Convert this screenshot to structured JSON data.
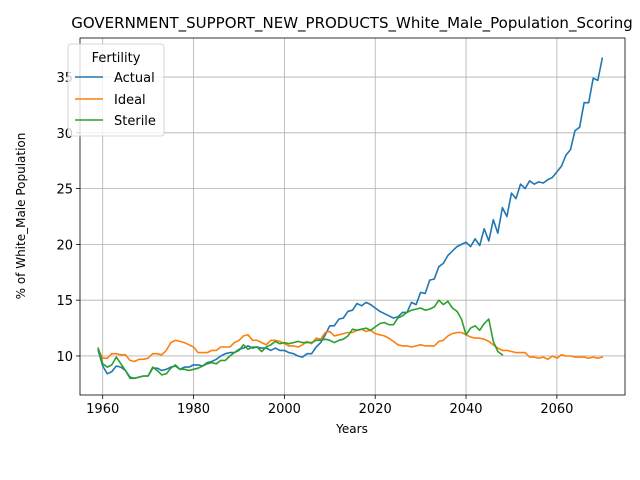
{
  "chart_data": {
    "type": "line",
    "title": "GOVERNMENT_SUPPORT_NEW_PRODUCTS_White_Male_Population_Scoring",
    "xlabel": "Years",
    "ylabel": "% of White_Male Population",
    "xlim": [
      1955,
      2075
    ],
    "ylim": [
      6.5,
      38.5
    ],
    "xticks": [
      1960,
      1980,
      2000,
      2020,
      2040,
      2060
    ],
    "yticks": [
      10,
      15,
      20,
      25,
      30,
      35
    ],
    "grid": true,
    "legend": {
      "title": "Fertility",
      "position": "upper-left"
    },
    "series": [
      {
        "name": "Actual",
        "color": "#1f77b4",
        "x": [
          1959,
          1960,
          1961,
          1962,
          1963,
          1964,
          1965,
          1966,
          1967,
          1968,
          1969,
          1970,
          1971,
          1972,
          1973,
          1974,
          1975,
          1976,
          1977,
          1978,
          1979,
          1980,
          1981,
          1982,
          1983,
          1984,
          1985,
          1986,
          1987,
          1988,
          1989,
          1990,
          1991,
          1992,
          1993,
          1994,
          1995,
          1996,
          1997,
          1998,
          1999,
          2000,
          2001,
          2002,
          2003,
          2004,
          2005,
          2006,
          2007,
          2008,
          2009,
          2010,
          2011,
          2012,
          2013,
          2014,
          2015,
          2016,
          2017,
          2018,
          2019,
          2020,
          2021,
          2022,
          2023,
          2024,
          2025,
          2026,
          2027,
          2028,
          2029,
          2030,
          2031,
          2032,
          2033,
          2034,
          2035,
          2036,
          2037,
          2038,
          2039,
          2040,
          2041,
          2042,
          2043,
          2044,
          2045,
          2046,
          2047,
          2048,
          2049,
          2050,
          2051,
          2052,
          2053,
          2054,
          2055,
          2056,
          2057,
          2058,
          2059,
          2060,
          2061,
          2062,
          2063,
          2064,
          2065,
          2066,
          2067,
          2068,
          2069,
          2070
        ],
        "values": [
          10.5,
          9.1,
          8.4,
          8.6,
          9.1,
          9.0,
          8.7,
          8.1,
          8.0,
          8.1,
          8.2,
          8.2,
          8.9,
          8.9,
          8.7,
          8.8,
          9.0,
          9.1,
          8.8,
          9.0,
          9.0,
          9.2,
          9.2,
          9.1,
          9.4,
          9.5,
          9.7,
          10.0,
          10.2,
          10.3,
          10.3,
          10.6,
          10.7,
          10.9,
          10.7,
          10.8,
          10.7,
          10.7,
          10.5,
          10.7,
          10.5,
          10.5,
          10.3,
          10.2,
          10.0,
          9.9,
          10.2,
          10.2,
          10.8,
          11.2,
          11.9,
          12.7,
          12.7,
          13.3,
          13.4,
          14.0,
          14.1,
          14.7,
          14.5,
          14.8,
          14.6,
          14.3,
          14.0,
          13.8,
          13.6,
          13.4,
          13.5,
          13.9,
          13.9,
          14.8,
          14.6,
          15.7,
          15.6,
          16.8,
          16.9,
          18.0,
          18.3,
          19.0,
          19.4,
          19.8,
          20.0,
          20.2,
          19.8,
          20.5,
          19.9,
          21.4,
          20.3,
          22.2,
          21.0,
          23.3,
          22.5,
          24.6,
          24.1,
          25.4,
          25.0,
          25.7,
          25.4,
          25.6,
          25.5,
          25.8,
          26.0,
          26.5,
          27.0,
          28.0,
          28.5,
          30.2,
          30.5,
          32.7,
          32.7,
          34.9,
          34.7,
          36.7
        ]
      },
      {
        "name": "Ideal",
        "color": "#ff7f0e",
        "x": [
          1959,
          1960,
          1961,
          1962,
          1963,
          1964,
          1965,
          1966,
          1967,
          1968,
          1969,
          1970,
          1971,
          1972,
          1973,
          1974,
          1975,
          1976,
          1977,
          1978,
          1979,
          1980,
          1981,
          1982,
          1983,
          1984,
          1985,
          1986,
          1987,
          1988,
          1989,
          1990,
          1991,
          1992,
          1993,
          1994,
          1995,
          1996,
          1997,
          1998,
          1999,
          2000,
          2001,
          2002,
          2003,
          2004,
          2005,
          2006,
          2007,
          2008,
          2009,
          2010,
          2011,
          2012,
          2013,
          2014,
          2015,
          2016,
          2017,
          2018,
          2019,
          2020,
          2021,
          2022,
          2023,
          2024,
          2025,
          2026,
          2027,
          2028,
          2029,
          2030,
          2031,
          2032,
          2033,
          2034,
          2035,
          2036,
          2037,
          2038,
          2039,
          2040,
          2041,
          2042,
          2043,
          2044,
          2045,
          2046,
          2047,
          2048,
          2049,
          2050,
          2051,
          2052,
          2053,
          2054,
          2055,
          2056,
          2057,
          2058,
          2059,
          2060,
          2061,
          2062,
          2063,
          2064,
          2065,
          2066,
          2067,
          2068,
          2069,
          2070
        ],
        "values": [
          10.6,
          9.8,
          9.8,
          10.2,
          10.2,
          10.1,
          10.1,
          9.6,
          9.5,
          9.7,
          9.7,
          9.8,
          10.2,
          10.2,
          10.1,
          10.5,
          11.2,
          11.4,
          11.3,
          11.2,
          11.0,
          10.8,
          10.3,
          10.3,
          10.3,
          10.5,
          10.5,
          10.8,
          10.8,
          10.8,
          11.2,
          11.4,
          11.8,
          11.9,
          11.4,
          11.4,
          11.2,
          11.0,
          11.4,
          11.4,
          11.3,
          11.1,
          10.9,
          10.9,
          10.8,
          11.0,
          11.3,
          11.1,
          11.6,
          11.5,
          12.1,
          12.2,
          11.8,
          11.9,
          12.0,
          12.1,
          12.1,
          12.3,
          12.4,
          12.2,
          12.3,
          12.0,
          11.9,
          11.8,
          11.6,
          11.3,
          11.0,
          10.9,
          10.9,
          10.8,
          10.9,
          11.0,
          10.9,
          10.9,
          10.9,
          11.3,
          11.4,
          11.8,
          12.0,
          12.1,
          12.1,
          11.9,
          11.7,
          11.6,
          11.6,
          11.5,
          11.3,
          11.0,
          10.7,
          10.5,
          10.5,
          10.4,
          10.3,
          10.3,
          10.3,
          9.9,
          9.9,
          9.8,
          9.9,
          9.7,
          10.0,
          9.8,
          10.1,
          10.0,
          10.0,
          9.9,
          9.9,
          9.9,
          9.8,
          9.9,
          9.8,
          9.9
        ]
      },
      {
        "name": "Sterile",
        "color": "#2ca02c",
        "x": [
          1959,
          1960,
          1961,
          1962,
          1963,
          1964,
          1965,
          1966,
          1967,
          1968,
          1969,
          1970,
          1971,
          1972,
          1973,
          1974,
          1975,
          1976,
          1977,
          1978,
          1979,
          1980,
          1981,
          1982,
          1983,
          1984,
          1985,
          1986,
          1987,
          1988,
          1989,
          1990,
          1991,
          1992,
          1993,
          1994,
          1995,
          1996,
          1997,
          1998,
          1999,
          2000,
          2001,
          2002,
          2003,
          2004,
          2005,
          2006,
          2007,
          2008,
          2009,
          2010,
          2011,
          2012,
          2013,
          2014,
          2015,
          2016,
          2017,
          2018,
          2019,
          2020,
          2021,
          2022,
          2023,
          2024,
          2025,
          2026,
          2027,
          2028,
          2029,
          2030,
          2031,
          2032,
          2033,
          2034,
          2035,
          2036,
          2037,
          2038,
          2039,
          2040,
          2041,
          2042,
          2043,
          2044,
          2045,
          2046,
          2047,
          2048
        ],
        "values": [
          10.7,
          9.3,
          9.0,
          9.2,
          9.9,
          9.3,
          8.7,
          8.0,
          8.0,
          8.1,
          8.2,
          8.2,
          9.0,
          8.7,
          8.3,
          8.4,
          8.9,
          9.2,
          8.8,
          8.8,
          8.7,
          8.8,
          8.9,
          9.1,
          9.3,
          9.4,
          9.3,
          9.6,
          9.6,
          10.0,
          10.3,
          10.5,
          11.0,
          10.6,
          10.8,
          10.8,
          10.4,
          10.8,
          11.0,
          11.3,
          11.1,
          11.2,
          11.1,
          11.2,
          11.3,
          11.2,
          11.2,
          11.2,
          11.4,
          11.4,
          11.5,
          11.4,
          11.2,
          11.4,
          11.5,
          11.8,
          12.4,
          12.3,
          12.4,
          12.5,
          12.3,
          12.6,
          12.9,
          13.0,
          12.8,
          12.8,
          13.4,
          13.6,
          13.9,
          14.1,
          14.2,
          14.3,
          14.1,
          14.2,
          14.4,
          15.0,
          14.6,
          14.9,
          14.3,
          14.0,
          13.3,
          11.9,
          12.5,
          12.7,
          12.3,
          12.9,
          13.3,
          11.3,
          10.4,
          10.1
        ]
      }
    ]
  }
}
